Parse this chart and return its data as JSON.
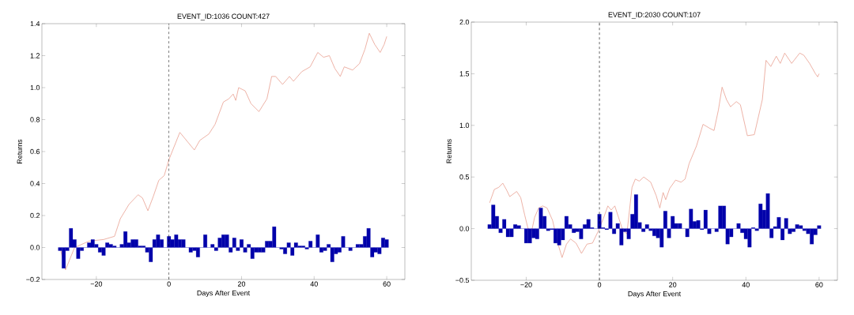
{
  "chart_data": [
    {
      "type": "line",
      "title": "EVENT_ID:1036    COUNT:427",
      "xlabel": "Days After Event",
      "ylabel": "Returns",
      "xlim": [
        -35,
        65
      ],
      "ylim": [
        -0.2,
        1.4
      ],
      "xticks": [
        {
          "value": -20,
          "label": "−20"
        },
        0,
        20,
        40,
        60
      ],
      "yticks": [
        {
          "value": -0.2,
          "label": "−0.2"
        },
        {
          "value": 0,
          "label": "0.0"
        },
        {
          "value": 0.2,
          "label": "0.2"
        },
        {
          "value": 0.4,
          "label": "0.4"
        },
        {
          "value": 0.6,
          "label": "0.6"
        },
        {
          "value": 0.8,
          "label": "0.8"
        },
        {
          "value": 1.0,
          "label": "1.0"
        },
        {
          "value": 1.2,
          "label": "1.2"
        },
        {
          "value": 1.4,
          "label": "1.4"
        }
      ],
      "ref_lines": [
        {
          "axis": "x",
          "value": 0,
          "color": "#000000",
          "line_style": "dashed"
        }
      ],
      "series": [
        {
          "color": "#e8a090",
          "x": [
            -30,
            -28.5,
            -26,
            -24,
            -22,
            -18,
            -15,
            -13.4,
            -11,
            -8.5,
            -7.3,
            -5.8,
            -4.3,
            -2.8,
            -1.3,
            0,
            3,
            7,
            8.5,
            11,
            12.7,
            15,
            16.5,
            17.7,
            18.4,
            19.2,
            21,
            22.6,
            24.8,
            27,
            28.3,
            29.4,
            31.3,
            33.2,
            34.3,
            36.6,
            38.9,
            41,
            42.6,
            44.2,
            45.7,
            47.2,
            48.3,
            50.6,
            52.5,
            54,
            55.2,
            56.7,
            58.2,
            59.3,
            60
          ],
          "values": [
            0.0,
            -0.14,
            0.0,
            0.02,
            0.04,
            0.05,
            0.07,
            0.18,
            0.27,
            0.33,
            0.31,
            0.23,
            0.32,
            0.42,
            0.45,
            0.55,
            0.72,
            0.61,
            0.67,
            0.71,
            0.77,
            0.91,
            0.93,
            0.96,
            0.92,
            1.0,
            0.98,
            0.9,
            0.85,
            0.93,
            1.07,
            1.07,
            1.02,
            1.07,
            1.04,
            1.1,
            1.13,
            1.22,
            1.19,
            1.2,
            1.12,
            1.07,
            1.13,
            1.11,
            1.15,
            1.24,
            1.34,
            1.27,
            1.22,
            1.27,
            1.32
          ]
        },
        {
          "type": "bar",
          "color": "#0000aa",
          "x": [
            -30,
            -29,
            -28,
            -27,
            -26,
            -25,
            -24,
            -23,
            -22,
            -21,
            -20,
            -19,
            -18,
            -17,
            -16,
            -15,
            -14,
            -13,
            -12,
            -11,
            -10,
            -9,
            -8,
            -7,
            -6,
            -5,
            -4,
            -3,
            -2,
            -1,
            0,
            1,
            2,
            3,
            4,
            5,
            6,
            7,
            8,
            9,
            10,
            11,
            12,
            13,
            14,
            15,
            16,
            17,
            18,
            19,
            20,
            21,
            22,
            23,
            24,
            25,
            26,
            27,
            28,
            29,
            30,
            31,
            32,
            33,
            34,
            35,
            36,
            37,
            38,
            39,
            40,
            41,
            42,
            43,
            44,
            45,
            46,
            47,
            48,
            49,
            50,
            51,
            52,
            53,
            54,
            55,
            56,
            57,
            58,
            59,
            60
          ],
          "values": [
            -0.02,
            -0.13,
            -0.02,
            0.12,
            0.05,
            -0.07,
            -0.02,
            0.0,
            0.03,
            0.05,
            0.02,
            -0.03,
            -0.05,
            0.03,
            0.02,
            0.01,
            0.0,
            0.02,
            0.1,
            0.03,
            0.05,
            0.05,
            0.01,
            0.01,
            -0.03,
            -0.09,
            0.05,
            0.08,
            0.05,
            0.0,
            0.07,
            0.05,
            0.08,
            0.05,
            0.05,
            0.0,
            -0.03,
            -0.02,
            -0.06,
            0.0,
            0.08,
            0.0,
            0.02,
            -0.02,
            0.06,
            0.08,
            0.08,
            -0.03,
            0.06,
            -0.02,
            0.05,
            -0.03,
            0.02,
            -0.07,
            -0.03,
            -0.03,
            -0.03,
            0.04,
            0.04,
            0.13,
            0.0,
            -0.01,
            -0.04,
            0.03,
            -0.05,
            0.03,
            0.01,
            0.01,
            -0.01,
            0.04,
            0.0,
            0.08,
            -0.03,
            -0.02,
            0.02,
            -0.09,
            -0.04,
            -0.03,
            0.07,
            0.0,
            -0.02,
            0.0,
            0.02,
            0.02,
            0.07,
            0.12,
            -0.06,
            -0.03,
            -0.04,
            0.06,
            0.05
          ]
        }
      ]
    },
    {
      "type": "line",
      "title": "EVENT_ID:2030    COUNT:107",
      "xlabel": "Days After Event",
      "ylabel": "Returns",
      "xlim": [
        -35,
        65
      ],
      "ylim": [
        -0.5,
        2.0
      ],
      "xticks": [
        {
          "value": -20,
          "label": "−20"
        },
        0,
        20,
        40,
        60
      ],
      "yticks": [
        {
          "value": -0.5,
          "label": "−0.5"
        },
        {
          "value": 0,
          "label": "0.0"
        },
        {
          "value": 0.5,
          "label": "0.5"
        },
        {
          "value": 1.0,
          "label": "1.0"
        },
        {
          "value": 1.5,
          "label": "1.5"
        },
        {
          "value": 2.0,
          "label": "2.0"
        }
      ],
      "ref_lines": [
        {
          "axis": "x",
          "value": 0,
          "color": "#000000",
          "line_style": "dashed"
        }
      ],
      "series": [
        {
          "color": "#e8a090",
          "x": [
            -30,
            -28.7,
            -27.5,
            -26.4,
            -25.3,
            -24.5,
            -22.6,
            -21.5,
            -20.4,
            -19.5,
            -18.5,
            -17.7,
            -16.6,
            -15.5,
            -14.3,
            -12.8,
            -11.3,
            -10.2,
            -9,
            -7.9,
            -6.4,
            -4.9,
            -3.4,
            -1.9,
            -0.4,
            1.1,
            2.3,
            3.2,
            4.2,
            5.3,
            6.4,
            7.5,
            8.9,
            9.8,
            10.9,
            12.1,
            14,
            15.5,
            16.5,
            17.4,
            18.1,
            19.2,
            20.8,
            22.3,
            23.4,
            24.5,
            26.5,
            28.3,
            30.2,
            31.3,
            32.5,
            33.5,
            34.7,
            35.8,
            37.4,
            38.5,
            40.4,
            42.3,
            44.5,
            45.5,
            46.8,
            48.3,
            49.4,
            50.6,
            52.5,
            54.7,
            55.8,
            57.4,
            59,
            59.6,
            60
          ],
          "values": [
            0.25,
            0.38,
            0.4,
            0.44,
            0.37,
            0.31,
            0.36,
            0.3,
            0.13,
            0.0,
            -0.02,
            0.11,
            0.2,
            0.22,
            0.2,
            0.08,
            -0.15,
            -0.28,
            -0.15,
            -0.1,
            -0.14,
            -0.24,
            -0.15,
            -0.14,
            -0.03,
            0.1,
            0.22,
            0.18,
            0.22,
            0.1,
            -0.02,
            -0.05,
            0.4,
            0.48,
            0.46,
            0.5,
            0.45,
            0.32,
            0.2,
            0.35,
            0.28,
            0.39,
            0.47,
            0.45,
            0.48,
            0.63,
            0.8,
            1.01,
            0.97,
            0.95,
            1.15,
            1.37,
            1.25,
            1.18,
            1.23,
            1.2,
            0.9,
            0.91,
            1.25,
            1.63,
            1.57,
            1.67,
            1.6,
            1.7,
            1.6,
            1.7,
            1.68,
            1.6,
            1.5,
            1.47,
            1.5
          ]
        },
        {
          "type": "bar",
          "color": "#0000aa",
          "x": [
            -30,
            -29,
            -28,
            -27,
            -26,
            -25,
            -24,
            -23,
            -22,
            -21,
            -20,
            -19,
            -18,
            -17,
            -16,
            -15,
            -14,
            -13,
            -12,
            -11,
            -10,
            -9,
            -8,
            -7,
            -6,
            -5,
            -4,
            -3,
            -2,
            -1,
            0,
            1,
            2,
            3,
            4,
            5,
            6,
            7,
            8,
            9,
            10,
            11,
            12,
            13,
            14,
            15,
            16,
            17,
            18,
            19,
            20,
            21,
            22,
            23,
            24,
            25,
            26,
            27,
            28,
            29,
            30,
            31,
            32,
            33,
            34,
            35,
            36,
            37,
            38,
            39,
            40,
            41,
            42,
            43,
            44,
            45,
            46,
            47,
            48,
            49,
            50,
            51,
            52,
            53,
            54,
            55,
            56,
            57,
            58,
            59,
            60
          ],
          "values": [
            0.04,
            0.23,
            0.12,
            -0.04,
            0.09,
            -0.08,
            -0.08,
            0.04,
            0.03,
            0.0,
            -0.14,
            -0.14,
            -0.09,
            -0.1,
            0.2,
            0.12,
            -0.02,
            -0.01,
            -0.14,
            -0.16,
            -0.11,
            0.12,
            0.04,
            -0.04,
            -0.03,
            -0.1,
            0.04,
            0.09,
            0.01,
            0.0,
            0.14,
            0.01,
            -0.01,
            0.16,
            -0.05,
            0.05,
            -0.16,
            -0.03,
            -0.1,
            0.14,
            0.33,
            0.06,
            -0.03,
            0.04,
            -0.02,
            -0.07,
            -0.09,
            -0.18,
            0.17,
            -0.09,
            0.12,
            0.05,
            0.05,
            0.0,
            -0.08,
            0.19,
            0.07,
            0.08,
            -0.01,
            0.18,
            -0.05,
            0.0,
            -0.03,
            0.22,
            0.22,
            -0.15,
            -0.08,
            0.0,
            0.05,
            -0.04,
            -0.1,
            -0.18,
            0.01,
            -0.02,
            0.24,
            0.18,
            0.34,
            -0.09,
            0.02,
            0.11,
            -0.11,
            0.1,
            -0.05,
            -0.03,
            0.04,
            0.03,
            -0.02,
            -0.05,
            -0.15,
            -0.06,
            0.03
          ]
        }
      ]
    }
  ]
}
